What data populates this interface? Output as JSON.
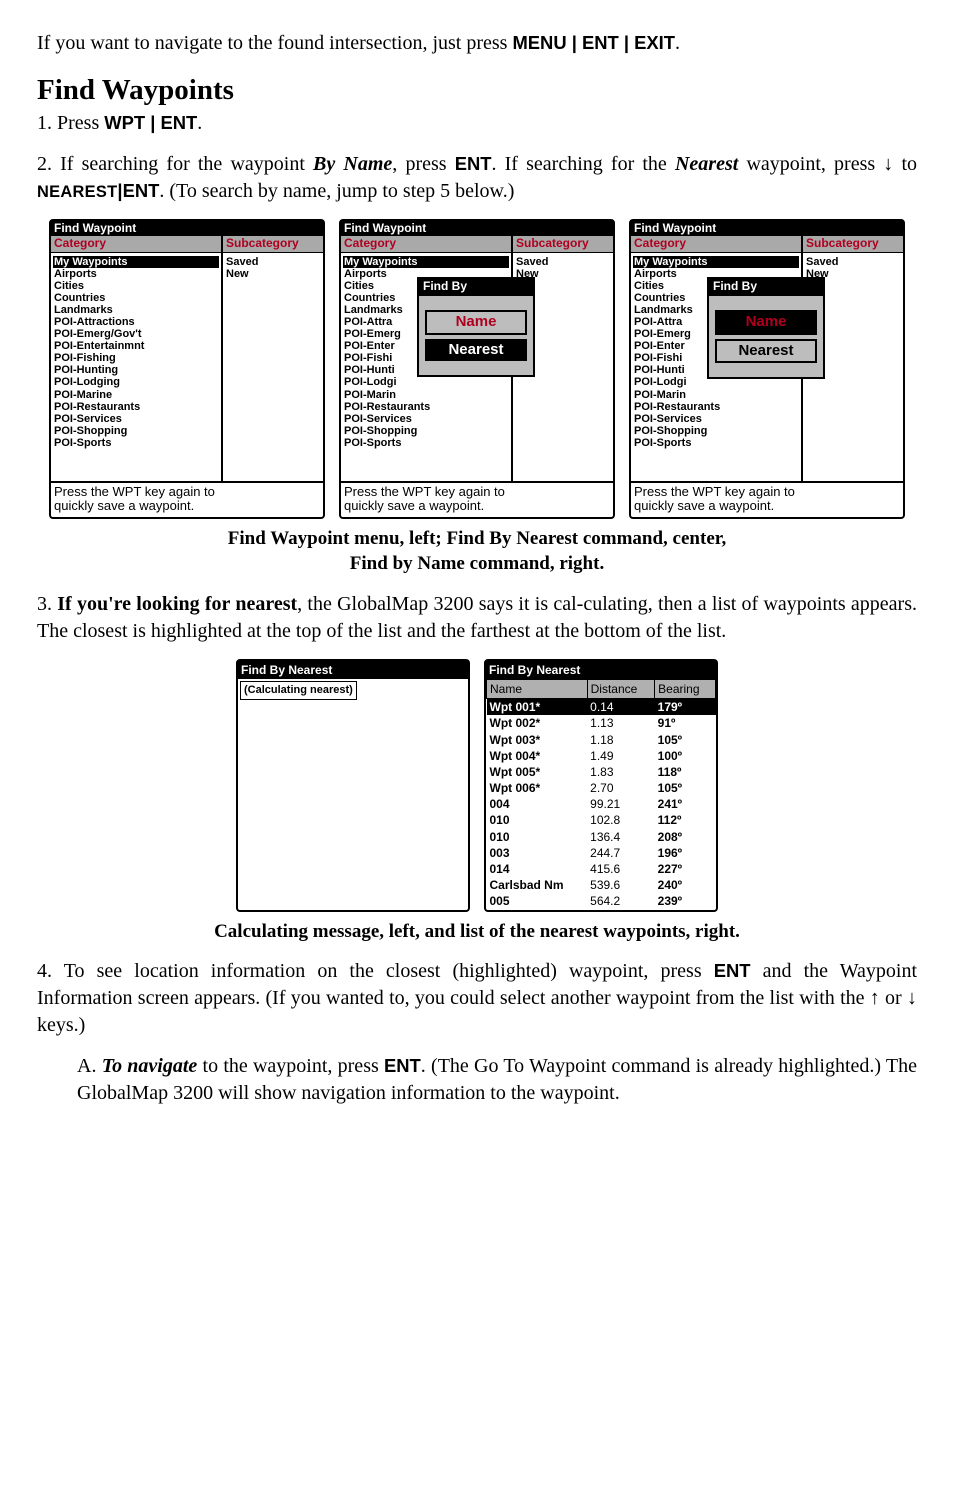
{
  "intro": {
    "text_a": "If you want to navigate to the found intersection, just press ",
    "keys": "MENU | ENT | EXIT",
    "text_b": "."
  },
  "heading": "Find Waypoints",
  "step1": {
    "prefix": "1. Press ",
    "keys": "WPT | ENT",
    "suffix": "."
  },
  "step2": {
    "a": "2. If searching for the waypoint ",
    "byname": "By Name",
    "b": ", press ",
    "ent": "ENT",
    "c": ". If searching for the ",
    "nearest": "Nearest",
    "d": " waypoint, press ↓ to ",
    "nearest_key": "NEAREST",
    "ent2": "ENT",
    "e": ". (To search by name, jump to step 5 below.)"
  },
  "device_common": {
    "title": "Find Waypoint",
    "cat": "Category",
    "subcat": "Subcategory",
    "sub_items": [
      "Saved",
      "New"
    ],
    "cat_items": [
      "My Waypoints",
      "Airports",
      "Cities",
      "Countries",
      "Landmarks",
      "POI-Attractions",
      "POI-Emerg/Gov't",
      "POI-Entertainmnt",
      "POI-Fishing",
      "POI-Hunting",
      "POI-Lodging",
      "POI-Marine",
      "POI-Restaurants",
      "POI-Services",
      "POI-Shopping",
      "POI-Sports"
    ],
    "hint1": "Press the WPT key again to",
    "hint2": "quickly save a waypoint."
  },
  "popup": {
    "title": "Find By",
    "name": "Name",
    "nearest": "Nearest"
  },
  "caption1a": "Find Waypoint menu, left; Find By Nearest command, center,",
  "caption1b": "Find by Name command, right.",
  "step3": {
    "a": "3. ",
    "b": "If you're looking for nearest",
    "c": ", the GlobalMap 3200 says it is cal-culating, then a list of waypoints appears. The closest is highlighted at the top of the list and the farthest at the bottom of the list."
  },
  "calc": {
    "title": "Find By Nearest",
    "msg": "(Calculating nearest)"
  },
  "list": {
    "title": "Find By Nearest",
    "columns": [
      "Name",
      "Distance",
      "Bearing"
    ],
    "rows": [
      [
        "Wpt 001*",
        "0.14",
        "179º"
      ],
      [
        "Wpt 002*",
        "1.13",
        "91º"
      ],
      [
        "Wpt 003*",
        "1.18",
        "105º"
      ],
      [
        "Wpt 004*",
        "1.49",
        "100º"
      ],
      [
        "Wpt 005*",
        "1.83",
        "118º"
      ],
      [
        "Wpt 006*",
        "2.70",
        "105º"
      ],
      [
        "004",
        "99.21",
        "241º"
      ],
      [
        "010",
        "102.8",
        "112º"
      ],
      [
        "010",
        "136.4",
        "208º"
      ],
      [
        "003",
        "244.7",
        "196º"
      ],
      [
        "014",
        "415.6",
        "227º"
      ],
      [
        "Carlsbad Nm",
        "539.6",
        "240º"
      ],
      [
        "005",
        "564.2",
        "239º"
      ]
    ]
  },
  "caption2": "Calculating message, left, and list of the nearest waypoints, right.",
  "step4": {
    "a": "4. To see location information on the closest (highlighted) waypoint, press ",
    "ent": "ENT",
    "b": " and the Waypoint Information screen appears. (If you wanted to, you could select another waypoint from the list with the ↑ or ↓ keys.)"
  },
  "step4a": {
    "a": "A. ",
    "nav": "To navigate",
    "b": " to the waypoint, press ",
    "ent": "ENT",
    "c": ". (The Go To Waypoint command is already highlighted.) The GlobalMap 3200 will show navigation information to the waypoint."
  }
}
